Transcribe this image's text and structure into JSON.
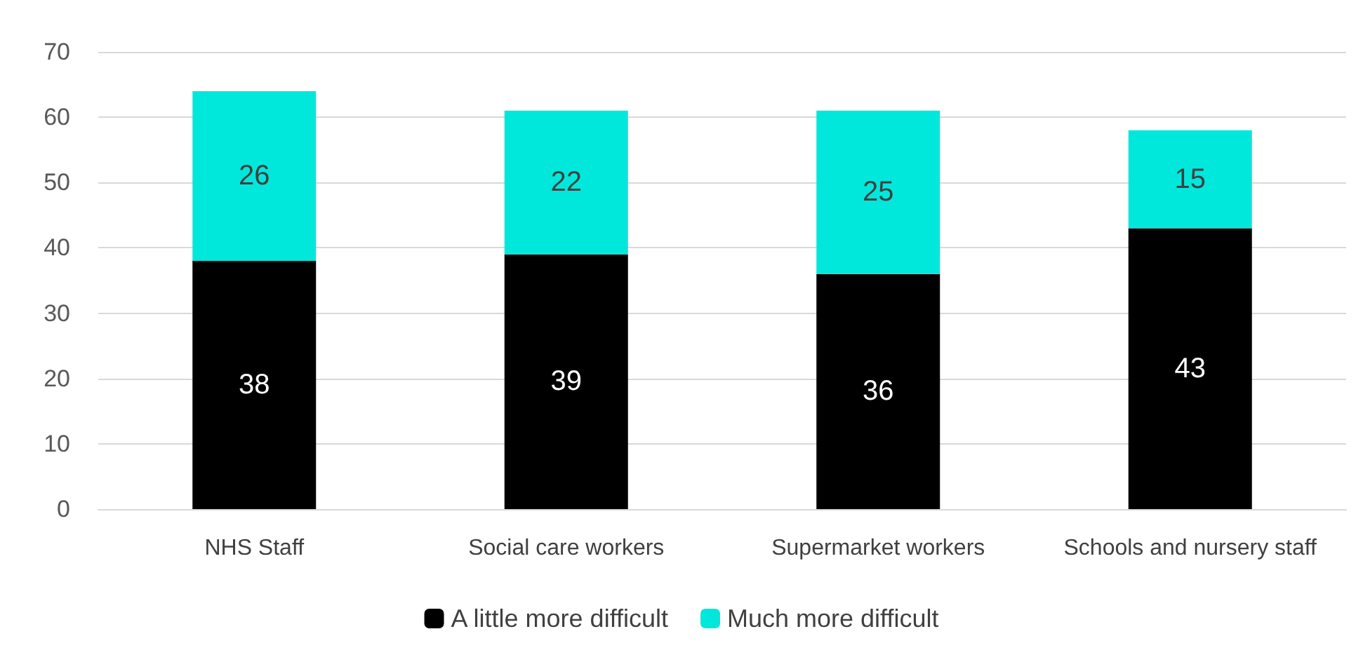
{
  "chart_data": {
    "type": "bar",
    "stacked": true,
    "categories": [
      "NHS Staff",
      "Social care workers",
      "Supermarket workers",
      "Schools and nursery staff"
    ],
    "series": [
      {
        "name": "A little more difficult",
        "color": "#000000",
        "values": [
          38,
          39,
          36,
          43
        ]
      },
      {
        "name": "Much more difficult",
        "color": "#00e8dc",
        "values": [
          26,
          22,
          25,
          15
        ]
      }
    ],
    "ylim": [
      0,
      70
    ],
    "yticks": [
      0,
      10,
      20,
      30,
      40,
      50,
      60,
      70
    ],
    "grid": "y",
    "legend": "bottom",
    "data_labels": true
  }
}
